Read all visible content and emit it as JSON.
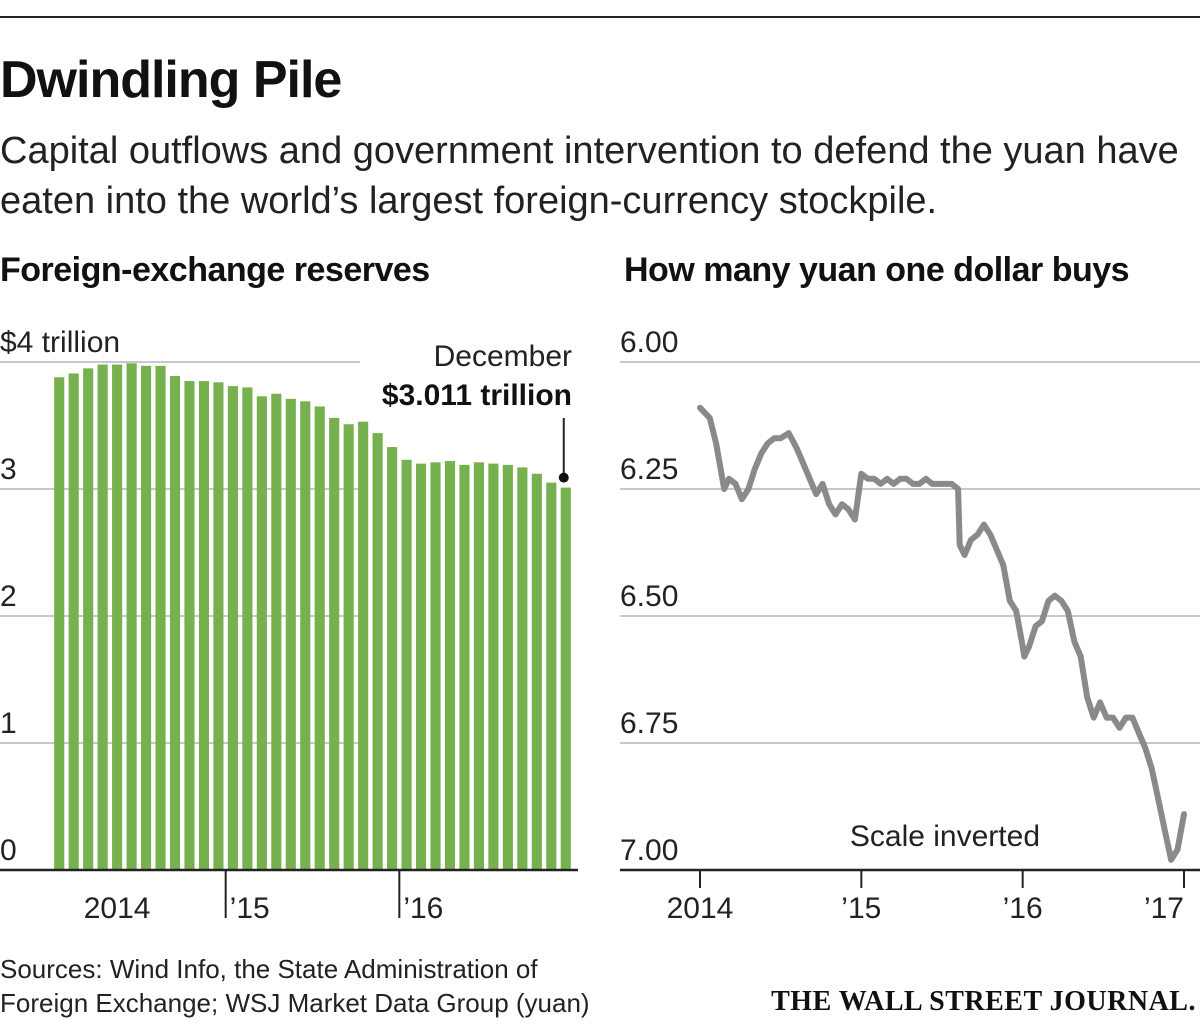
{
  "header": {
    "title": "Dwindling Pile",
    "subtitle": "Capital outflows and government intervention to defend the yuan have eaten into the world’s largest foreign-currency stockpile."
  },
  "footer": {
    "sources": "Sources: Wind Info, the State Administration of Foreign Exchange; WSJ Market Data Group (yuan)",
    "publisher": "THE WALL STREET JOURNAL."
  },
  "colors": {
    "bar": "#77b04e",
    "line": "#8a8a8a",
    "grid": "#b5b5b5",
    "axis": "#222222"
  },
  "chart_data": [
    {
      "type": "bar",
      "title": "Foreign-exchange reserves",
      "unit_label": "$4 trillion",
      "ylim": [
        0,
        4
      ],
      "yticks": [
        {
          "value": 4,
          "label": "$4 trillion"
        },
        {
          "value": 3,
          "label": "3"
        },
        {
          "value": 2,
          "label": "2"
        },
        {
          "value": 1,
          "label": "1"
        },
        {
          "value": 0,
          "label": "0"
        }
      ],
      "xticks": [
        {
          "index": 4.5,
          "label": "2014",
          "tick": false
        },
        {
          "index": 12.5,
          "label": "’15",
          "tick": true
        },
        {
          "index": 24.5,
          "label": "’16",
          "tick": true
        }
      ],
      "annotation": {
        "line1": "December",
        "line2": "$3.011 trillion",
        "index": 35,
        "value": 3.011
      },
      "categories": [
        "Jan 2014",
        "Feb 2014",
        "Mar 2014",
        "Apr 2014",
        "May 2014",
        "Jun 2014",
        "Jul 2014",
        "Aug 2014",
        "Sep 2014",
        "Oct 2014",
        "Nov 2014",
        "Dec 2014",
        "Jan 2015",
        "Feb 2015",
        "Mar 2015",
        "Apr 2015",
        "May 2015",
        "Jun 2015",
        "Jul 2015",
        "Aug 2015",
        "Sep 2015",
        "Oct 2015",
        "Nov 2015",
        "Dec 2015",
        "Jan 2016",
        "Feb 2016",
        "Mar 2016",
        "Apr 2016",
        "May 2016",
        "Jun 2016",
        "Jul 2016",
        "Aug 2016",
        "Sep 2016",
        "Oct 2016",
        "Nov 2016",
        "Dec 2016"
      ],
      "values": [
        3.88,
        3.91,
        3.95,
        3.98,
        3.98,
        3.99,
        3.97,
        3.97,
        3.89,
        3.85,
        3.85,
        3.84,
        3.81,
        3.8,
        3.73,
        3.75,
        3.71,
        3.69,
        3.65,
        3.56,
        3.51,
        3.53,
        3.44,
        3.33,
        3.23,
        3.2,
        3.21,
        3.22,
        3.19,
        3.21,
        3.2,
        3.19,
        3.17,
        3.12,
        3.05,
        3.011
      ]
    },
    {
      "type": "line",
      "title": "How many yuan one dollar buys",
      "note": "Scale inverted",
      "ylim": [
        6.0,
        7.0
      ],
      "inverted": true,
      "yticks": [
        {
          "value": 6.0,
          "label": "6.00"
        },
        {
          "value": 6.25,
          "label": "6.25"
        },
        {
          "value": 6.5,
          "label": "6.50"
        },
        {
          "value": 6.75,
          "label": "6.75"
        },
        {
          "value": 7.0,
          "label": "7.00"
        }
      ],
      "xlim": [
        2014.0,
        2017.0
      ],
      "xticks": [
        {
          "value": 2014.0,
          "label": "2014"
        },
        {
          "value": 2015.0,
          "label": "’15"
        },
        {
          "value": 2016.0,
          "label": "’16"
        },
        {
          "value": 2017.0,
          "label": "’17"
        }
      ],
      "x": [
        2014.0,
        2014.03,
        2014.06,
        2014.1,
        2014.15,
        2014.18,
        2014.22,
        2014.26,
        2014.3,
        2014.34,
        2014.38,
        2014.42,
        2014.46,
        2014.5,
        2014.55,
        2014.6,
        2014.64,
        2014.68,
        2014.72,
        2014.76,
        2014.8,
        2014.84,
        2014.88,
        2014.92,
        2014.96,
        2015.0,
        2015.04,
        2015.08,
        2015.12,
        2015.16,
        2015.2,
        2015.24,
        2015.28,
        2015.32,
        2015.36,
        2015.4,
        2015.44,
        2015.48,
        2015.52,
        2015.56,
        2015.6,
        2015.61,
        2015.64,
        2015.68,
        2015.72,
        2015.76,
        2015.8,
        2015.84,
        2015.88,
        2015.92,
        2015.96,
        2016.0,
        2016.01,
        2016.04,
        2016.08,
        2016.12,
        2016.16,
        2016.2,
        2016.24,
        2016.28,
        2016.32,
        2016.36,
        2016.4,
        2016.44,
        2016.48,
        2016.52,
        2016.56,
        2016.6,
        2016.64,
        2016.68,
        2016.72,
        2016.76,
        2016.8,
        2016.84,
        2016.88,
        2016.92,
        2016.96,
        2017.0
      ],
      "values": [
        6.09,
        6.1,
        6.11,
        6.16,
        6.25,
        6.23,
        6.24,
        6.27,
        6.25,
        6.21,
        6.18,
        6.16,
        6.15,
        6.15,
        6.14,
        6.17,
        6.2,
        6.23,
        6.26,
        6.24,
        6.28,
        6.3,
        6.28,
        6.29,
        6.31,
        6.22,
        6.23,
        6.23,
        6.24,
        6.23,
        6.24,
        6.23,
        6.23,
        6.24,
        6.24,
        6.23,
        6.24,
        6.24,
        6.24,
        6.24,
        6.25,
        6.36,
        6.38,
        6.35,
        6.34,
        6.32,
        6.34,
        6.37,
        6.4,
        6.47,
        6.49,
        6.56,
        6.58,
        6.56,
        6.52,
        6.51,
        6.47,
        6.46,
        6.47,
        6.49,
        6.55,
        6.58,
        6.66,
        6.7,
        6.67,
        6.7,
        6.7,
        6.72,
        6.7,
        6.7,
        6.73,
        6.76,
        6.8,
        6.86,
        6.92,
        6.98,
        6.96,
        6.89
      ]
    }
  ]
}
